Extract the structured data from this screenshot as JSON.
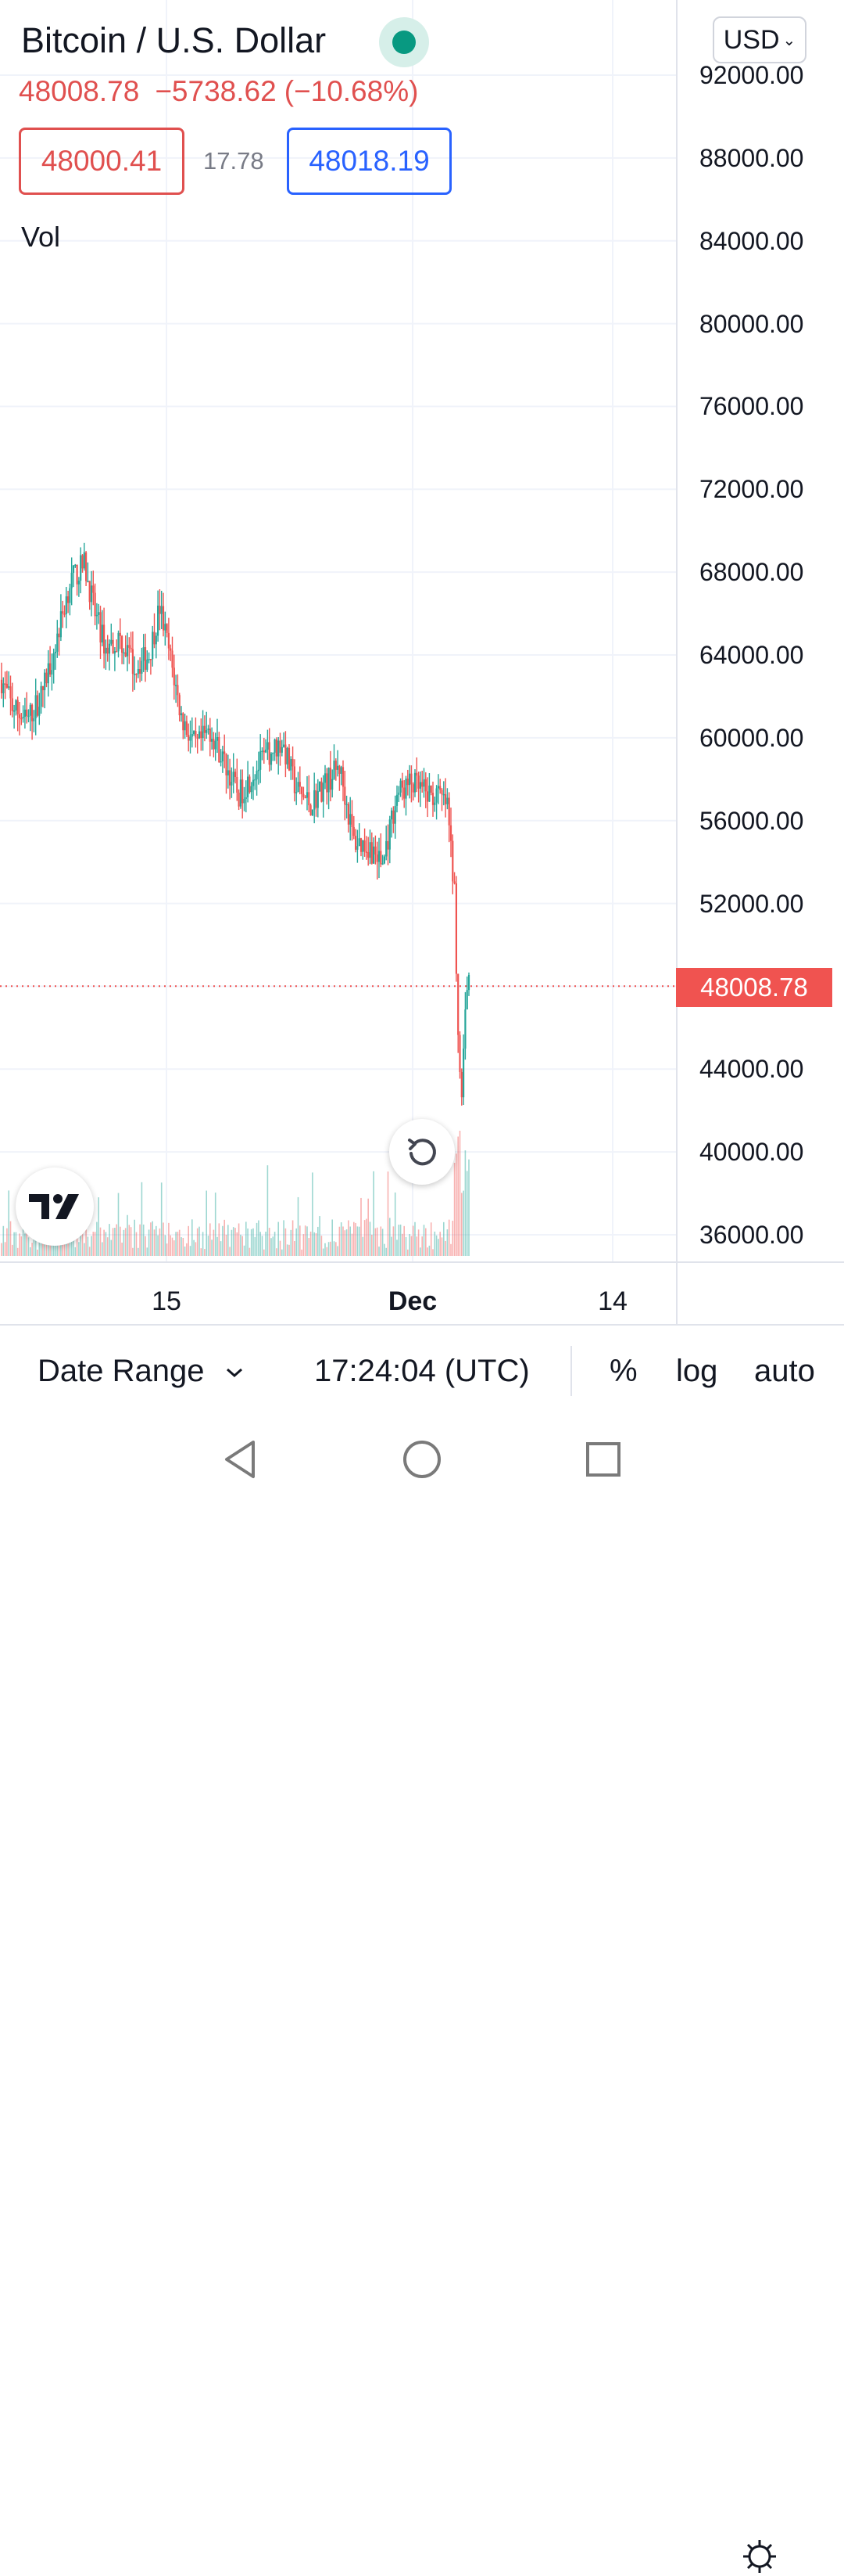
{
  "header": {
    "symbol_title": "Bitcoin / U.S. Dollar",
    "last_price": "48008.78",
    "change": "−5738.62",
    "change_pct": "(−10.68%)",
    "bid": "48000.41",
    "spread": "17.78",
    "ask": "48018.19",
    "volume_label": "Vol",
    "currency": "USD"
  },
  "colors": {
    "up": "#26a69a",
    "down": "#ef5350",
    "ask": "#2962ff",
    "live": "#089981"
  },
  "price_axis": {
    "ticks": [
      "92000.00",
      "88000.00",
      "84000.00",
      "80000.00",
      "76000.00",
      "72000.00",
      "68000.00",
      "64000.00",
      "60000.00",
      "56000.00",
      "52000.00",
      "44000.00",
      "40000.00",
      "36000.00"
    ],
    "last_price_label": "48008.78"
  },
  "time_axis": {
    "ticks": [
      {
        "label": "15",
        "bold": false
      },
      {
        "label": "Dec",
        "bold": true
      },
      {
        "label": "14",
        "bold": false
      }
    ]
  },
  "bottom_bar": {
    "date_range": "Date Range",
    "clock": "17:24:04 (UTC)",
    "percent": "%",
    "log": "log",
    "auto": "auto"
  },
  "icons": {
    "live": "live-status-dot-icon",
    "currency_dropdown": "chevron-down-icon",
    "reset": "reset-chart-icon",
    "logo": "tradingview-logo-icon",
    "settings": "gear-icon",
    "date_range_dropdown": "chevron-down-icon",
    "back": "nav-back-icon",
    "home": "nav-home-icon",
    "recents": "nav-recents-icon"
  },
  "chart_data": {
    "type": "candlestick",
    "interval": "4h",
    "x_ticks": [
      "15",
      "Dec",
      "14"
    ],
    "ylim": [
      34000,
      93500
    ],
    "anchors": [
      [
        0,
        62800
      ],
      [
        6,
        61500
      ],
      [
        14,
        60800
      ],
      [
        22,
        62000
      ],
      [
        30,
        64500
      ],
      [
        38,
        67500
      ],
      [
        46,
        68400
      ],
      [
        52,
        66000
      ],
      [
        58,
        64300
      ],
      [
        66,
        64800
      ],
      [
        74,
        63400
      ],
      [
        82,
        64000
      ],
      [
        88,
        66300
      ],
      [
        94,
        63800
      ],
      [
        100,
        61000
      ],
      [
        108,
        59500
      ],
      [
        116,
        60400
      ],
      [
        124,
        58800
      ],
      [
        132,
        57200
      ],
      [
        140,
        58300
      ],
      [
        148,
        59200
      ],
      [
        156,
        59800
      ],
      [
        164,
        57500
      ],
      [
        172,
        56800
      ],
      [
        180,
        57800
      ],
      [
        188,
        58600
      ],
      [
        196,
        55000
      ],
      [
        204,
        54800
      ],
      [
        212,
        53900
      ],
      [
        220,
        57300
      ],
      [
        228,
        57800
      ],
      [
        236,
        57300
      ],
      [
        244,
        57100
      ],
      [
        248,
        56700
      ],
      [
        252,
        52500
      ],
      [
        254,
        46000
      ],
      [
        256,
        42000
      ],
      [
        258,
        47200
      ],
      [
        260,
        48008.78
      ]
    ]
  }
}
